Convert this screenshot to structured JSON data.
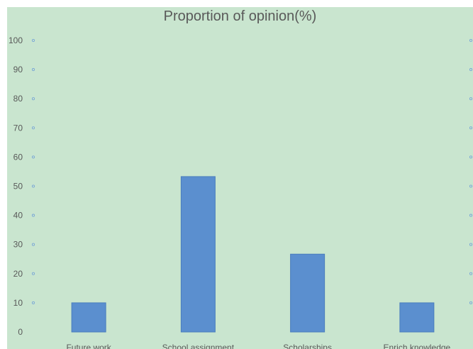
{
  "chart_data": {
    "type": "bar",
    "title": "Proportion of opinion(%)",
    "categories": [
      "Future work",
      "School assignment",
      "Scholarships",
      "Enrich knowledge"
    ],
    "values": [
      10,
      53.3,
      26.7,
      10
    ],
    "ylim": [
      0,
      100
    ],
    "yticks": [
      0,
      10,
      20,
      30,
      40,
      50,
      60,
      70,
      80,
      90,
      100
    ],
    "xlabel": "",
    "ylabel": "",
    "grid": "dotted-markers",
    "legend": "none",
    "colors": {
      "background": "#c9e5cf",
      "bar": "#5b8fcf",
      "bar_edge": "#4a7dbd",
      "grid_marker": "#7aa7d6"
    }
  }
}
